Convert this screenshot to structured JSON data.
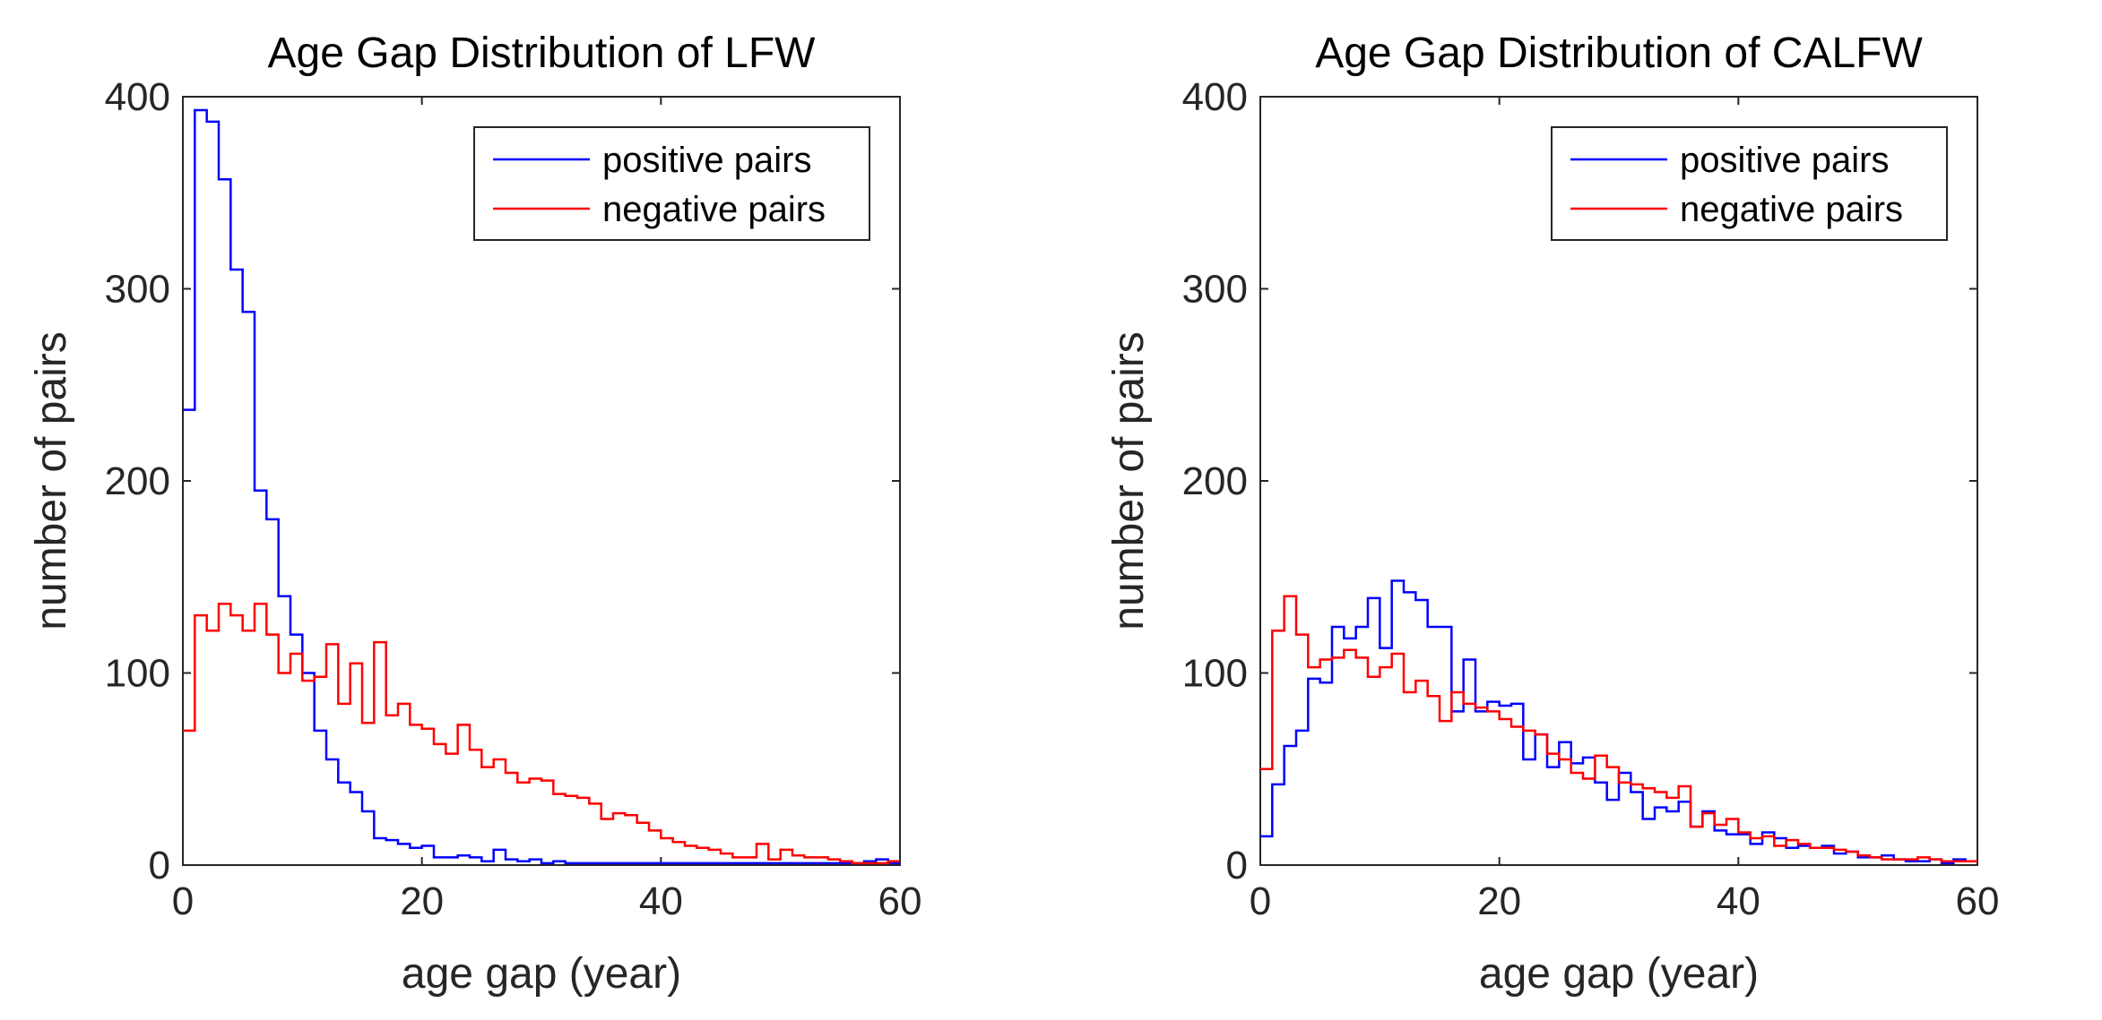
{
  "chart_data": [
    {
      "type": "line",
      "title": "Age Gap Distribution of LFW",
      "xlabel": "age gap (year)",
      "ylabel": "number of pairs",
      "xlim": [
        0,
        60
      ],
      "ylim": [
        0,
        400
      ],
      "xticks": [
        "0",
        "20",
        "40",
        "60"
      ],
      "yticks": [
        "0",
        "100",
        "200",
        "300",
        "400"
      ],
      "legend_position": "top-right",
      "grid": false,
      "series": [
        {
          "name": "positive pairs",
          "color": "#0000ff",
          "bin_width": 1,
          "values": [
            237,
            393,
            387,
            357,
            310,
            288,
            195,
            180,
            140,
            120,
            100,
            70,
            55,
            43,
            38,
            28,
            14,
            13,
            11,
            9,
            10,
            4,
            4,
            5,
            4,
            2,
            8,
            3,
            2,
            3,
            1,
            2,
            1,
            1,
            1,
            1,
            1,
            1,
            1,
            1,
            1,
            1,
            1,
            1,
            1,
            1,
            1,
            1,
            1,
            1,
            1,
            1,
            1,
            1,
            1,
            1,
            1,
            2,
            3,
            1
          ]
        },
        {
          "name": "negative pairs",
          "color": "#ff0000",
          "bin_width": 1,
          "values": [
            70,
            130,
            122,
            136,
            130,
            122,
            136,
            120,
            100,
            110,
            96,
            98,
            115,
            84,
            105,
            74,
            116,
            78,
            84,
            73,
            71,
            63,
            58,
            73,
            60,
            51,
            55,
            48,
            43,
            45,
            44,
            37,
            36,
            35,
            32,
            24,
            27,
            26,
            22,
            18,
            14,
            12,
            10,
            9,
            8,
            6,
            4,
            4,
            11,
            3,
            8,
            5,
            4,
            4,
            3,
            2,
            1,
            1,
            1,
            2
          ]
        }
      ]
    },
    {
      "type": "line",
      "title": "Age Gap Distribution of CALFW",
      "xlabel": "age gap (year)",
      "ylabel": "number of pairs",
      "xlim": [
        0,
        60
      ],
      "ylim": [
        0,
        400
      ],
      "xticks": [
        "0",
        "20",
        "40",
        "60"
      ],
      "yticks": [
        "0",
        "100",
        "200",
        "300",
        "400"
      ],
      "legend_position": "top-right",
      "grid": false,
      "series": [
        {
          "name": "positive pairs",
          "color": "#0000ff",
          "bin_width": 1,
          "values": [
            15,
            42,
            62,
            70,
            97,
            95,
            124,
            118,
            124,
            139,
            113,
            148,
            142,
            138,
            124,
            124,
            80,
            107,
            80,
            85,
            83,
            84,
            55,
            68,
            51,
            64,
            53,
            56,
            43,
            34,
            48,
            38,
            24,
            30,
            28,
            33,
            20,
            28,
            18,
            16,
            16,
            11,
            17,
            14,
            9,
            10,
            9,
            10,
            6,
            7,
            4,
            4,
            5,
            3,
            2,
            2,
            3,
            1,
            3,
            2
          ]
        },
        {
          "name": "negative pairs",
          "color": "#ff0000",
          "bin_width": 1,
          "values": [
            50,
            122,
            140,
            120,
            103,
            107,
            108,
            112,
            108,
            98,
            103,
            110,
            90,
            96,
            88,
            75,
            90,
            84,
            82,
            80,
            76,
            72,
            70,
            68,
            58,
            55,
            48,
            45,
            57,
            51,
            43,
            42,
            40,
            38,
            35,
            41,
            20,
            27,
            21,
            24,
            17,
            14,
            15,
            10,
            13,
            11,
            9,
            9,
            8,
            7,
            5,
            4,
            3,
            3,
            3,
            4,
            3,
            2,
            2,
            2
          ]
        }
      ]
    }
  ]
}
